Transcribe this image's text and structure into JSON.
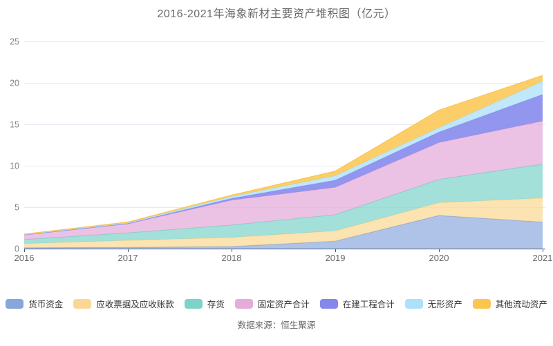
{
  "header": {
    "title": "2016-2021年海象新材主要资产堆积图（亿元）"
  },
  "footer": {
    "source": "数据来源：恒生聚源"
  },
  "style": {
    "grid_color": "#e9e9f4",
    "axis_color": "#4d5a7d",
    "y_label_color": "#85858f",
    "x_label_color": "#666666",
    "area_default_opacity": 0.7
  },
  "chart_data": {
    "type": "area",
    "stacked": true,
    "title": "2016-2021年海象新材主要资产堆积图（亿元）",
    "unit": "亿元",
    "x_labels": [
      "2016",
      "2017",
      "2018",
      "2019",
      "2020",
      "2021"
    ],
    "y_ticks": [
      0,
      5,
      10,
      15,
      20,
      25
    ],
    "ylim": [
      0,
      25
    ],
    "grid": true,
    "legend_position": "bottom",
    "series": [
      {
        "name": "货币资金",
        "color": "#87a6db",
        "opacity": 0.68,
        "values": [
          0.1,
          0.15,
          0.25,
          0.9,
          4.0,
          3.2
        ]
      },
      {
        "name": "应收票据及应收账款",
        "color": "#fad894",
        "opacity": 0.72,
        "values": [
          0.5,
          0.85,
          1.1,
          1.25,
          1.55,
          2.9
        ]
      },
      {
        "name": "存货",
        "color": "#7dd3ca",
        "opacity": 0.7,
        "values": [
          0.5,
          0.9,
          1.5,
          1.95,
          2.8,
          4.1
        ]
      },
      {
        "name": "固定资产合计",
        "color": "#e5abd9",
        "opacity": 0.72,
        "values": [
          0.55,
          1.1,
          3.0,
          3.3,
          4.45,
          5.2
        ]
      },
      {
        "name": "在建工程合计",
        "color": "#8487ec",
        "opacity": 0.88,
        "values": [
          0.02,
          0.03,
          0.2,
          0.85,
          1.25,
          3.2
        ]
      },
      {
        "name": "无形资产",
        "color": "#aee0f9",
        "opacity": 0.78,
        "values": [
          0.05,
          0.1,
          0.25,
          0.55,
          0.55,
          1.6
        ]
      },
      {
        "name": "其他流动资产",
        "color": "#fbc54f",
        "opacity": 0.85,
        "values": [
          0.03,
          0.08,
          0.15,
          0.55,
          2.1,
          0.7
        ]
      }
    ]
  }
}
